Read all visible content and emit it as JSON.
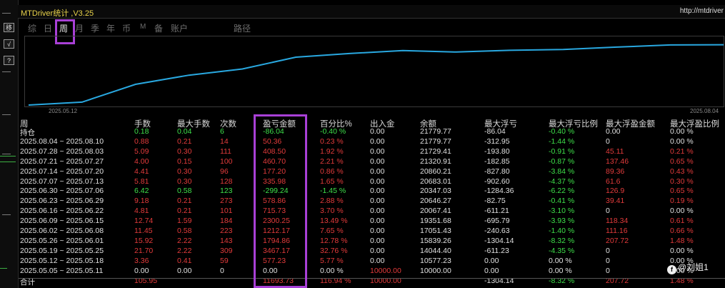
{
  "app": {
    "title": "MTDriver统计 ,V3.25",
    "url": "http://mtdriver"
  },
  "toolbar": {
    "btn1": "移",
    "btn2": "√",
    "btn3": "?"
  },
  "tabs": [
    "综",
    "日",
    "周",
    "月",
    "季",
    "年",
    "币",
    "M",
    "备",
    "账户",
    "路径"
  ],
  "selected_tab": "周",
  "chart": {
    "start_label": "2025.05.12",
    "end_label": "2025.08.04",
    "line_color": "#29a8e0"
  },
  "chart_data": {
    "type": "line",
    "x": [
      "2025.05.05",
      "2025.05.12",
      "2025.05.19",
      "2025.05.26",
      "2025.06.02",
      "2025.06.09",
      "2025.06.16",
      "2025.06.23",
      "2025.06.30",
      "2025.07.07",
      "2025.07.14",
      "2025.07.21",
      "2025.07.28",
      "2025.08.04"
    ],
    "series": [
      {
        "values": [
          10000,
          10577.23,
          14044.4,
          15839.26,
          17051.43,
          19351.68,
          20067.41,
          20646.27,
          20347.03,
          20683.01,
          20860.21,
          21320.91,
          21729.41,
          21779.77
        ]
      }
    ]
  },
  "table": {
    "headers": [
      "周",
      "手数",
      "最大手数",
      "次数",
      "盈亏金额",
      "百分比%",
      "出入金",
      "余额",
      "最大浮亏",
      "最大浮亏比例",
      "最大浮盈金额",
      "最大浮盈比例"
    ],
    "rows": [
      {
        "c": [
          "持仓",
          "0.18",
          "0.04",
          "6",
          "-86.04",
          "-0.40 %",
          "0.00",
          "21779.77",
          "-86.04",
          "-0.40 %",
          "0.00",
          "0.00 %"
        ],
        "k": [
          "w",
          "g",
          "g",
          "g",
          "g",
          "g",
          "w",
          "w",
          "w",
          "g",
          "w",
          "w"
        ]
      },
      {
        "c": [
          "2025.08.04 ~ 2025.08.10",
          "0.88",
          "0.21",
          "14",
          "50.36",
          "0.23 %",
          "0.00",
          "21779.77",
          "-312.95",
          "-1.44 %",
          "0",
          "0.00 %"
        ],
        "k": [
          "w",
          "r",
          "r",
          "r",
          "r",
          "r",
          "w",
          "w",
          "w",
          "g",
          "w",
          "w"
        ]
      },
      {
        "c": [
          "2025.07.28 ~ 2025.08.03",
          "5.09",
          "0.30",
          "111",
          "408.50",
          "1.92 %",
          "0.00",
          "21729.41",
          "-193.80",
          "-0.91 %",
          "45.11",
          "0.21 %"
        ],
        "k": [
          "w",
          "r",
          "r",
          "r",
          "r",
          "r",
          "w",
          "w",
          "w",
          "g",
          "r",
          "r"
        ]
      },
      {
        "c": [
          "2025.07.21 ~ 2025.07.27",
          "4.00",
          "0.15",
          "100",
          "460.70",
          "2.21 %",
          "0.00",
          "21320.91",
          "-182.85",
          "-0.87 %",
          "137.46",
          "0.65 %"
        ],
        "k": [
          "w",
          "r",
          "r",
          "r",
          "r",
          "r",
          "w",
          "w",
          "w",
          "g",
          "r",
          "r"
        ]
      },
      {
        "c": [
          "2025.07.14 ~ 2025.07.20",
          "4.41",
          "0.30",
          "96",
          "177.20",
          "0.86 %",
          "0.00",
          "20860.21",
          "-827.80",
          "-3.84 %",
          "89.36",
          "0.43 %"
        ],
        "k": [
          "w",
          "r",
          "r",
          "r",
          "r",
          "r",
          "w",
          "w",
          "w",
          "g",
          "r",
          "r"
        ]
      },
      {
        "c": [
          "2025.07.07 ~ 2025.07.13",
          "5.81",
          "0.30",
          "128",
          "335.98",
          "1.65 %",
          "0.00",
          "20683.01",
          "-902.60",
          "-4.37 %",
          "61.6",
          "0.30 %"
        ],
        "k": [
          "w",
          "r",
          "r",
          "r",
          "r",
          "r",
          "w",
          "w",
          "w",
          "g",
          "r",
          "r"
        ]
      },
      {
        "c": [
          "2025.06.30 ~ 2025.07.06",
          "6.42",
          "0.58",
          "123",
          "-299.24",
          "-1.45 %",
          "0.00",
          "20347.03",
          "-1284.36",
          "-6.22 %",
          "126.9",
          "0.65 %"
        ],
        "k": [
          "w",
          "g",
          "g",
          "g",
          "g",
          "g",
          "w",
          "w",
          "w",
          "g",
          "r",
          "r"
        ]
      },
      {
        "c": [
          "2025.06.23 ~ 2025.06.29",
          "9.18",
          "0.21",
          "273",
          "578.86",
          "2.88 %",
          "0.00",
          "20646.27",
          "-82.75",
          "-0.41 %",
          "39.41",
          "0.19 %"
        ],
        "k": [
          "w",
          "r",
          "r",
          "r",
          "r",
          "r",
          "w",
          "w",
          "w",
          "g",
          "r",
          "r"
        ]
      },
      {
        "c": [
          "2025.06.16 ~ 2025.06.22",
          "4.81",
          "0.21",
          "101",
          "715.73",
          "3.70 %",
          "0.00",
          "20067.41",
          "-611.21",
          "-3.10 %",
          "0",
          "0.00 %"
        ],
        "k": [
          "w",
          "r",
          "r",
          "r",
          "r",
          "r",
          "w",
          "w",
          "w",
          "g",
          "w",
          "w"
        ]
      },
      {
        "c": [
          "2025.06.09 ~ 2025.06.15",
          "12.74",
          "1.59",
          "184",
          "2300.25",
          "13.49 %",
          "0.00",
          "19351.68",
          "-695.79",
          "-3.93 %",
          "118.34",
          "0.61 %"
        ],
        "k": [
          "w",
          "r",
          "r",
          "r",
          "r",
          "r",
          "w",
          "w",
          "w",
          "g",
          "r",
          "r"
        ]
      },
      {
        "c": [
          "2025.06.02 ~ 2025.06.08",
          "11.45",
          "0.58",
          "223",
          "1212.17",
          "7.65 %",
          "0.00",
          "17051.43",
          "-240.63",
          "-1.40 %",
          "111.16",
          "0.66 %"
        ],
        "k": [
          "w",
          "r",
          "r",
          "r",
          "r",
          "r",
          "w",
          "w",
          "w",
          "g",
          "r",
          "r"
        ]
      },
      {
        "c": [
          "2025.05.26 ~ 2025.06.01",
          "15.92",
          "2.22",
          "143",
          "1794.86",
          "12.78 %",
          "0.00",
          "15839.26",
          "-1304.14",
          "-8.32 %",
          "207.72",
          "1.48 %"
        ],
        "k": [
          "w",
          "r",
          "r",
          "r",
          "r",
          "r",
          "w",
          "w",
          "w",
          "g",
          "r",
          "r"
        ]
      },
      {
        "c": [
          "2025.05.19 ~ 2025.05.25",
          "21.70",
          "2.22",
          "309",
          "3467.17",
          "32.76 %",
          "0.00",
          "14044.40",
          "-611.23",
          "-4.35 %",
          "0",
          "0.00 %"
        ],
        "k": [
          "w",
          "r",
          "r",
          "r",
          "r",
          "r",
          "w",
          "w",
          "w",
          "g",
          "w",
          "w"
        ]
      },
      {
        "c": [
          "2025.05.12 ~ 2025.05.18",
          "3.36",
          "0.41",
          "59",
          "577.23",
          "5.77 %",
          "0.00",
          "10577.23",
          "0.00",
          "0.00 %",
          "0",
          "0.00 %"
        ],
        "k": [
          "w",
          "r",
          "r",
          "r",
          "r",
          "r",
          "w",
          "w",
          "w",
          "w",
          "w",
          "w"
        ]
      },
      {
        "c": [
          "2025.05.05 ~ 2025.05.11",
          "0.00",
          "0.00",
          "0",
          "0.00",
          "0.00 %",
          "10000.00",
          "10000.00",
          "0.00",
          "0.00 %",
          "0",
          "0.00 %"
        ],
        "k": [
          "w",
          "w",
          "w",
          "w",
          "w",
          "w",
          "r",
          "w",
          "w",
          "w",
          "w",
          "w"
        ]
      },
      {
        "c": [
          "合计",
          "105.95",
          "",
          "",
          "11693.73",
          "116.94 %",
          "10000.00",
          "",
          "-1304.14",
          "-8.32 %",
          "207.72",
          "1.48 %"
        ],
        "k": [
          "w",
          "r",
          "r",
          "r",
          "r",
          "r",
          "r",
          "w",
          "w",
          "g",
          "r",
          "r"
        ]
      }
    ]
  },
  "watermark": {
    "badge": "f",
    "text": "@刘姐1"
  },
  "colors": {
    "profit": "#e23b3b",
    "loss": "#3ee04a",
    "highlight": "#a840d6",
    "title": "#e8d24a"
  }
}
